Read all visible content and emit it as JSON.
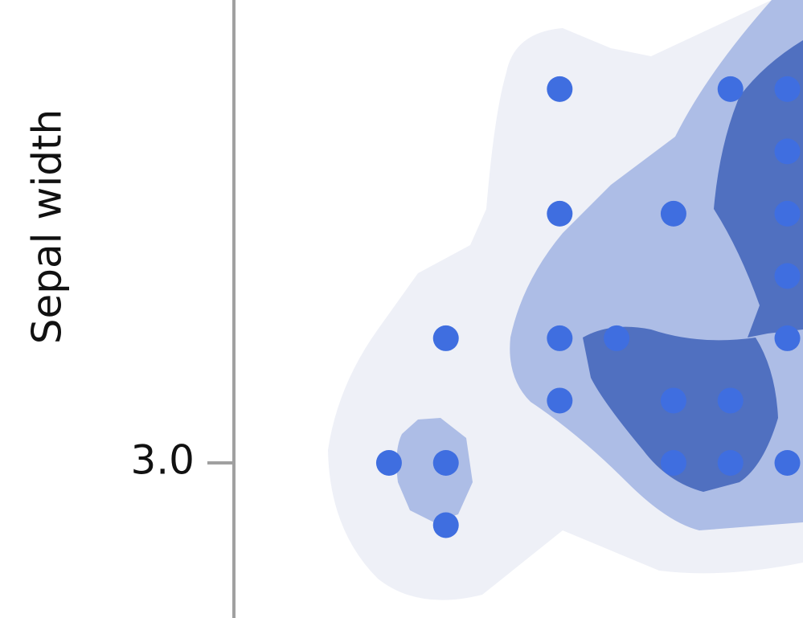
{
  "chart_data": {
    "type": "scatter",
    "ylabel": "Sepal width",
    "x": [
      4.3,
      4.4,
      4.4,
      4.4,
      4.6,
      4.6,
      4.6,
      4.6,
      4.7,
      4.8,
      4.8,
      4.8,
      4.9,
      4.9,
      4.9,
      5.0,
      5.0,
      5.0,
      5.0,
      5.0,
      5.0
    ],
    "values": [
      3.0,
      2.9,
      3.0,
      3.2,
      3.6,
      3.4,
      3.2,
      3.1,
      3.2,
      3.4,
      3.1,
      3.0,
      3.6,
      3.1,
      3.0,
      3.6,
      3.5,
      3.4,
      3.3,
      3.2,
      3.0
    ],
    "color": "#3f6ee0",
    "xlim": [
      4.0275,
      5.0275
    ],
    "ylim": [
      2.751,
      3.743
    ],
    "yticks": [
      {
        "value": 3.0,
        "label": "3.0"
      }
    ]
  }
}
